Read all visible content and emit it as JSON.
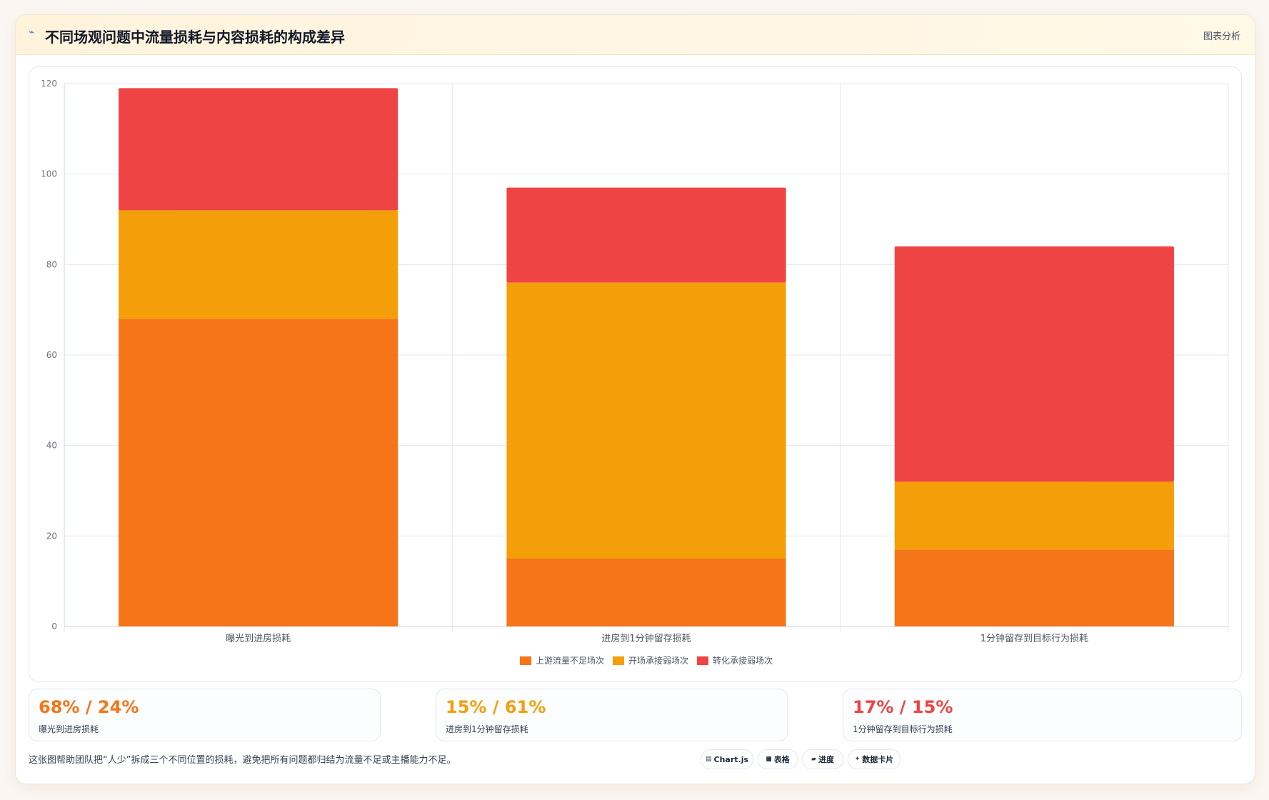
{
  "header": {
    "icon": "chart-line-icon",
    "title": "不同场观问题中流量损耗与内容损耗的构成差异",
    "tag": "图表分析"
  },
  "chart_data": {
    "type": "bar",
    "stacked": true,
    "categories": [
      "曝光到进房损耗",
      "进房到1分钟留存损耗",
      "1分钟留存到目标行为损耗"
    ],
    "series": [
      {
        "name": "上游流量不足场次",
        "color": "#f57518",
        "values": [
          68,
          15,
          17
        ]
      },
      {
        "name": "开场承接弱场次",
        "color": "#f49f0a",
        "values": [
          24,
          61,
          15
        ]
      },
      {
        "name": "转化承接弱场次",
        "color": "#ef4444",
        "values": [
          27,
          21,
          52
        ]
      }
    ],
    "ylim": [
      0,
      120
    ],
    "yticks": [
      0,
      20,
      40,
      60,
      80,
      100,
      120
    ],
    "grid": true,
    "legend": "bottom"
  },
  "stats": [
    {
      "value": "68% / 24%",
      "label": "曝光到进房损耗",
      "color": "#f57518"
    },
    {
      "value": "15% / 61%",
      "label": "进房到1分钟留存损耗",
      "color": "#f49f0a"
    },
    {
      "value": "17% / 15%",
      "label": "1分钟留存到目标行为损耗",
      "color": "#ef4444"
    }
  ],
  "footer": {
    "note": "这张图帮助团队把“人少”拆成三个不同位置的损耗，避免把所有问题都归结为流量不足或主播能力不足。",
    "badges": [
      {
        "icon": "chart-icon",
        "glyph": "▤",
        "label": "Chart.js"
      },
      {
        "icon": "table-icon",
        "glyph": "■",
        "label": "表格"
      },
      {
        "icon": "progress-icon",
        "glyph": "▰",
        "label": "进度"
      },
      {
        "icon": "sparkle-icon",
        "glyph": "✦",
        "label": "数据卡片"
      }
    ]
  }
}
